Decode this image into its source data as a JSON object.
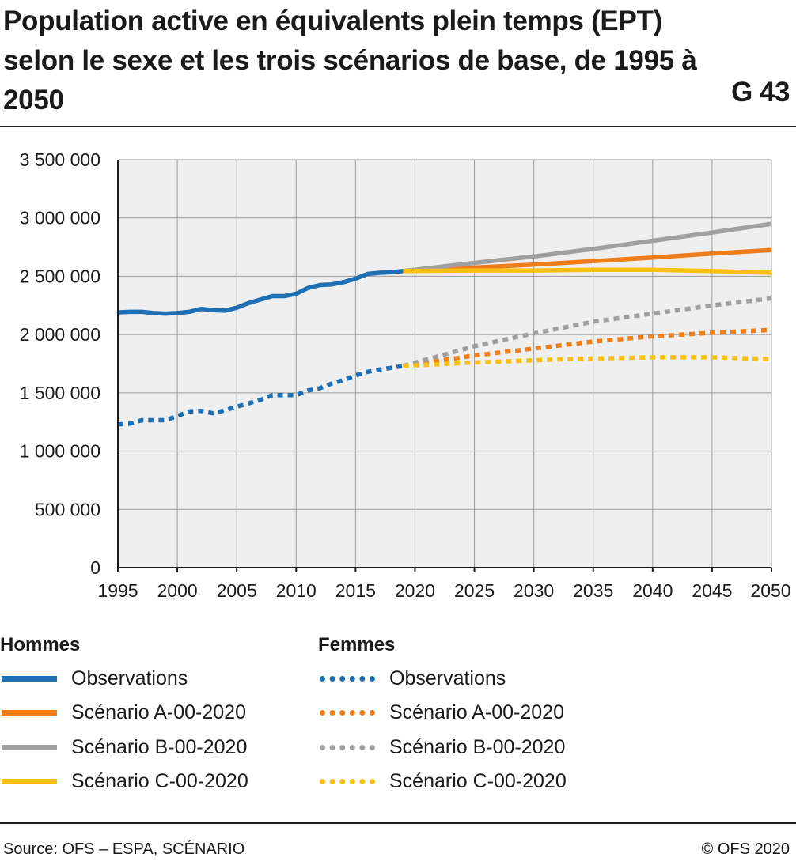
{
  "header": {
    "title": "Population active en équivalents plein temps (EPT) selon le sexe et les trois scénarios de base, de 1995 à 2050",
    "chart_id": "G 43"
  },
  "legend": {
    "hommes": {
      "heading": "Hommes",
      "items": [
        {
          "label": "Observations",
          "color": "#1f6fb5",
          "style": "solid"
        },
        {
          "label": "Scénario A-00-2020",
          "color": "#ef7d1a",
          "style": "solid"
        },
        {
          "label": "Scénario B-00-2020",
          "color": "#a0a0a0",
          "style": "solid"
        },
        {
          "label": "Scénario C-00-2020",
          "color": "#f8c014",
          "style": "solid"
        }
      ]
    },
    "femmes": {
      "heading": "Femmes",
      "items": [
        {
          "label": "Observations",
          "color": "#1f6fb5",
          "style": "dotted"
        },
        {
          "label": "Scénario A-00-2020",
          "color": "#ef7d1a",
          "style": "dotted"
        },
        {
          "label": "Scénario B-00-2020",
          "color": "#a0a0a0",
          "style": "dotted"
        },
        {
          "label": "Scénario C-00-2020",
          "color": "#f8c014",
          "style": "dotted"
        }
      ]
    }
  },
  "footer": {
    "source": "Source: OFS – ESPA, SCÉNARIO",
    "copyright": "© OFS 2020"
  },
  "chart_data": {
    "type": "line",
    "xlim": [
      1995,
      2050
    ],
    "ylim": [
      0,
      3500000
    ],
    "grid": true,
    "plot_background": "#efefef",
    "x_ticks": [
      1995,
      2000,
      2005,
      2010,
      2015,
      2020,
      2025,
      2030,
      2035,
      2040,
      2045,
      2050
    ],
    "x_tick_labels": [
      "1995",
      "2000",
      "2005",
      "2010",
      "2015",
      "2020",
      "2025",
      "2030",
      "2035",
      "2040",
      "2045",
      "2050"
    ],
    "y_ticks": [
      0,
      500000,
      1000000,
      1500000,
      2000000,
      2500000,
      3000000,
      3500000
    ],
    "y_tick_labels": [
      "0",
      "500 000",
      "1 000 000",
      "1 500 000",
      "2 000 000",
      "2 500 000",
      "3 000 000",
      "3 500 000"
    ],
    "series": [
      {
        "name": "Hommes – Observations",
        "color": "#1f6fb5",
        "dash": "solid",
        "x": [
          1995,
          1996,
          1997,
          1998,
          1999,
          2000,
          2001,
          2002,
          2003,
          2004,
          2005,
          2006,
          2007,
          2008,
          2009,
          2010,
          2011,
          2012,
          2013,
          2014,
          2015,
          2016,
          2017,
          2018,
          2019
        ],
        "y": [
          2190000,
          2195000,
          2195000,
          2185000,
          2180000,
          2185000,
          2195000,
          2220000,
          2210000,
          2205000,
          2230000,
          2270000,
          2300000,
          2330000,
          2330000,
          2350000,
          2400000,
          2425000,
          2430000,
          2450000,
          2480000,
          2520000,
          2530000,
          2535000,
          2545000
        ]
      },
      {
        "name": "Hommes – Scénario A-00-2020",
        "color": "#ef7d1a",
        "dash": "solid",
        "x": [
          2019,
          2025,
          2030,
          2035,
          2040,
          2045,
          2050
        ],
        "y": [
          2545000,
          2575000,
          2600000,
          2630000,
          2660000,
          2695000,
          2725000
        ]
      },
      {
        "name": "Hommes – Scénario B-00-2020",
        "color": "#a0a0a0",
        "dash": "solid",
        "x": [
          2019,
          2025,
          2030,
          2035,
          2040,
          2045,
          2050
        ],
        "y": [
          2545000,
          2615000,
          2670000,
          2735000,
          2805000,
          2875000,
          2950000
        ]
      },
      {
        "name": "Hommes – Scénario C-00-2020",
        "color": "#f8c014",
        "dash": "solid",
        "x": [
          2019,
          2025,
          2030,
          2035,
          2040,
          2045,
          2050
        ],
        "y": [
          2545000,
          2550000,
          2550000,
          2555000,
          2555000,
          2545000,
          2530000
        ]
      },
      {
        "name": "Femmes – Observations",
        "color": "#1f6fb5",
        "dash": "dotted",
        "x": [
          1995,
          1996,
          1997,
          1998,
          1999,
          2000,
          2001,
          2002,
          2003,
          2004,
          2005,
          2006,
          2007,
          2008,
          2009,
          2010,
          2011,
          2012,
          2013,
          2014,
          2015,
          2016,
          2017,
          2018,
          2019
        ],
        "y": [
          1230000,
          1235000,
          1265000,
          1265000,
          1265000,
          1300000,
          1340000,
          1345000,
          1325000,
          1350000,
          1380000,
          1410000,
          1440000,
          1480000,
          1480000,
          1480000,
          1520000,
          1540000,
          1580000,
          1610000,
          1650000,
          1680000,
          1700000,
          1715000,
          1730000
        ]
      },
      {
        "name": "Femmes – Scénario A-00-2020",
        "color": "#ef7d1a",
        "dash": "dotted",
        "x": [
          2019,
          2025,
          2030,
          2035,
          2040,
          2045,
          2050
        ],
        "y": [
          1730000,
          1820000,
          1880000,
          1940000,
          1985000,
          2015000,
          2040000
        ]
      },
      {
        "name": "Femmes – Scénario B-00-2020",
        "color": "#a0a0a0",
        "dash": "dotted",
        "x": [
          2019,
          2025,
          2030,
          2035,
          2040,
          2045,
          2050
        ],
        "y": [
          1730000,
          1900000,
          2010000,
          2110000,
          2180000,
          2250000,
          2310000
        ]
      },
      {
        "name": "Femmes – Scénario C-00-2020",
        "color": "#f8c014",
        "dash": "dotted",
        "x": [
          2019,
          2025,
          2030,
          2035,
          2040,
          2045,
          2050
        ],
        "y": [
          1730000,
          1760000,
          1780000,
          1795000,
          1805000,
          1805000,
          1790000
        ]
      }
    ]
  }
}
